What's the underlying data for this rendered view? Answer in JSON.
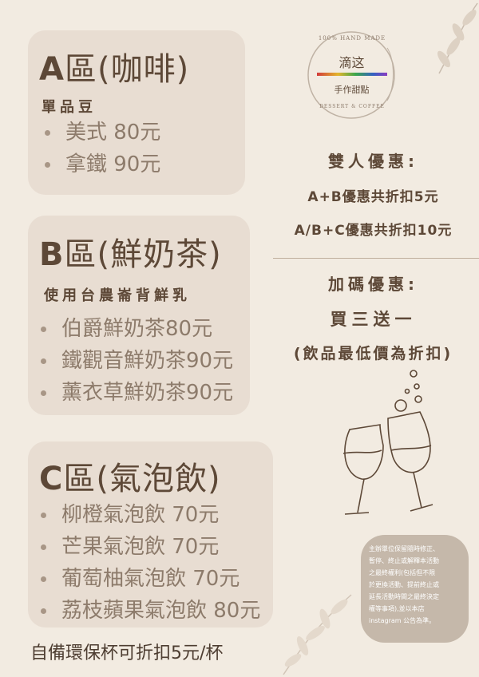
{
  "sections": {
    "a": {
      "letter": "A",
      "title_rest": "區(咖啡)",
      "subtitle": "單品豆",
      "items": [
        "美式 80元",
        "拿鐵 90元"
      ]
    },
    "b": {
      "letter": "B",
      "title_rest": "區(鮮奶茶)",
      "subtitle": "使用台農崙背鮮乳",
      "items": [
        "伯爵鮮奶茶80元",
        "鐵觀音鮮奶茶90元",
        "薰衣草鮮奶茶90元"
      ]
    },
    "c": {
      "letter": "C",
      "title_rest": "區(氣泡飲)",
      "items": [
        "柳橙氣泡飲 70元",
        "芒果氣泡飲 70元",
        "葡萄柚氣泡飲 70元",
        "荔枝蘋果氣泡飲 80元"
      ]
    }
  },
  "logo": {
    "arc_top": "100% HAND MADE",
    "name": "滴这",
    "tagline": "手作甜點",
    "arc_bottom": "DESSERT & COFFEE"
  },
  "promo": {
    "double_title": "雙人優惠:",
    "double_line1": "A+B優惠共折扣5元",
    "double_line2": "A/B+C優惠共折扣10元",
    "extra_title": "加碼優惠:",
    "extra_line1": "買三送一",
    "extra_line2": "(飲品最低價為折扣)"
  },
  "notice": {
    "lines": [
      "主辦單位保留隨時修正、",
      "暫停、終止或解釋本活動",
      "之最終權利(包括但不限",
      "於更換活動、提前終止或",
      "延長活動時間之最終決定",
      "權等事項),並以本店",
      "instagram 公告為準。"
    ]
  },
  "footer": {
    "text": "自備環保杯可折扣5元/杯"
  },
  "colors": {
    "background": "#f2ebe1",
    "card": "#e8ddd2",
    "text_dark": "#5d4837",
    "item_text": "#8d7b6b",
    "notice_bg": "#c5b8aa"
  }
}
